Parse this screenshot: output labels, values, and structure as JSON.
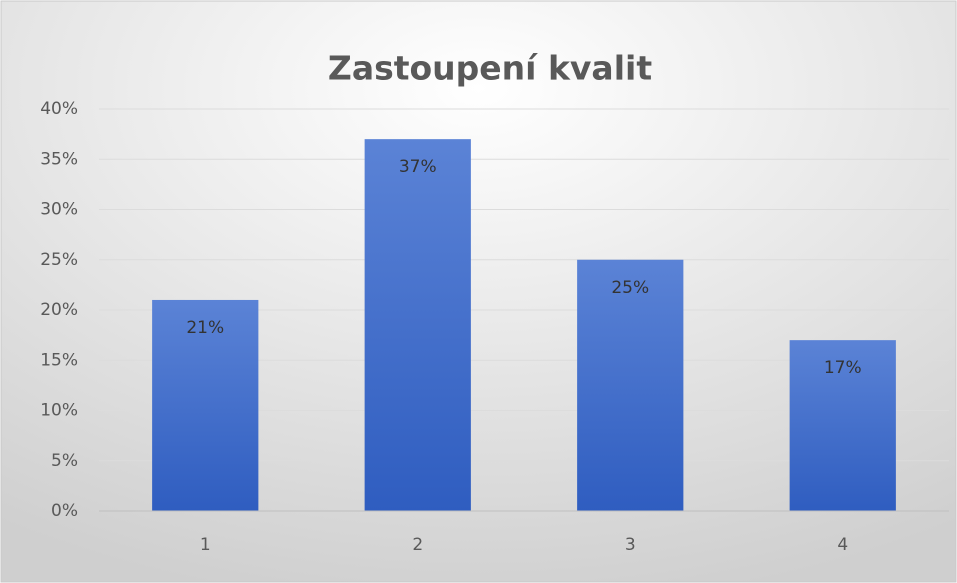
{
  "chart_data": {
    "type": "bar",
    "title": "Zastoupení kvalit",
    "categories": [
      "1",
      "2",
      "3",
      "4"
    ],
    "values": [
      21,
      37,
      25,
      17
    ],
    "value_labels": [
      "21%",
      "37%",
      "25%",
      "17%"
    ],
    "color": "#3e68c8",
    "ylim": [
      0,
      40
    ],
    "yticks": [
      {
        "value": 0,
        "label": "0%"
      },
      {
        "value": 5,
        "label": "5%"
      },
      {
        "value": 10,
        "label": "10%"
      },
      {
        "value": 15,
        "label": "15%"
      },
      {
        "value": 20,
        "label": "20%"
      },
      {
        "value": 25,
        "label": "25%"
      },
      {
        "value": 30,
        "label": "30%"
      },
      {
        "value": 35,
        "label": "35%"
      },
      {
        "value": 40,
        "label": "40%"
      }
    ],
    "grid": true
  }
}
